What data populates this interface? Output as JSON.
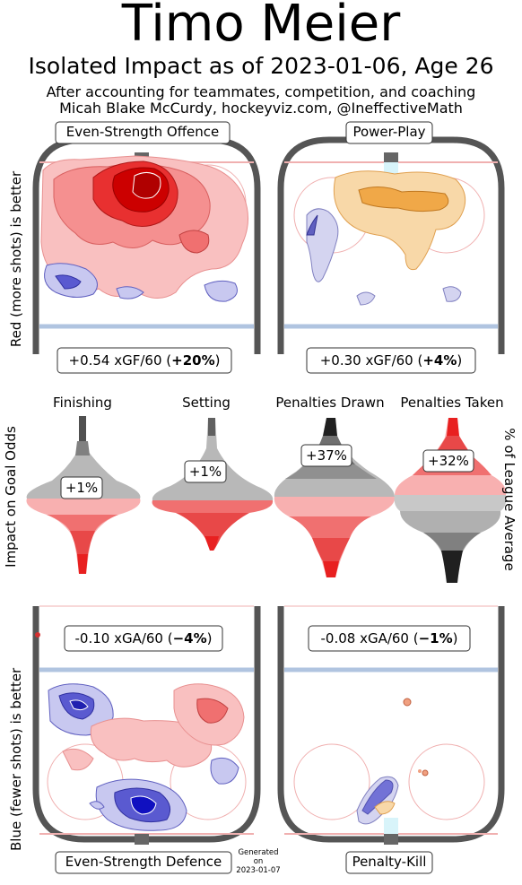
{
  "header": {
    "title": "Timo Meier",
    "subtitle": "Isolated Impact as of 2023-01-06, Age 26",
    "note_line1": "After accounting for teammates, competition, and coaching",
    "note_line2": "Micah Blake McCurdy, hockeyviz.com, @IneffectiveMath"
  },
  "axis_labels": {
    "left_top": "Red (more shots) is better",
    "left_middle": "Impact on Goal Odds",
    "left_bottom": "Blue (fewer shots) is better",
    "right_middle": "% of League Average"
  },
  "generated": {
    "line1": "Generated",
    "line2": "on",
    "line3": "2023-01-07"
  },
  "chart_data": [
    {
      "type": "heatmap",
      "title": "Even-Strength Offence",
      "stat": "+0.54 xGF/60",
      "pct": "+20%",
      "value": 0.54,
      "unit": "xGF/60",
      "percent": 20
    },
    {
      "type": "heatmap",
      "title": "Power-Play",
      "stat": "+0.30 xGF/60",
      "pct": "+4%",
      "value": 0.3,
      "unit": "xGF/60",
      "percent": 4
    },
    {
      "type": "heatmap",
      "title": "Even-Strength Defence",
      "stat": "-0.10 xGA/60",
      "pct": "−4%",
      "value": -0.1,
      "unit": "xGA/60",
      "percent": -4
    },
    {
      "type": "heatmap",
      "title": "Penalty-Kill",
      "stat": "-0.08 xGA/60",
      "pct": "−1%",
      "value": -0.08,
      "unit": "xGA/60",
      "percent": -1
    },
    {
      "type": "violin",
      "categories": [
        "Finishing",
        "Setting",
        "Penalties Drawn",
        "Penalties Taken"
      ],
      "labels": [
        "+1%",
        "+1%",
        "+37%",
        "+32%"
      ],
      "values": [
        1,
        1,
        37,
        32
      ]
    }
  ],
  "colors": {
    "red_dark": "#d40000",
    "red_light": "#f9b8b8",
    "blue_dark": "#2020c0",
    "blue_light": "#c6c6f0",
    "orange": "#f0a040",
    "rink_line": "#555555",
    "blue_line": "#b0c4e0",
    "goal_line": "#f0b0b0"
  }
}
